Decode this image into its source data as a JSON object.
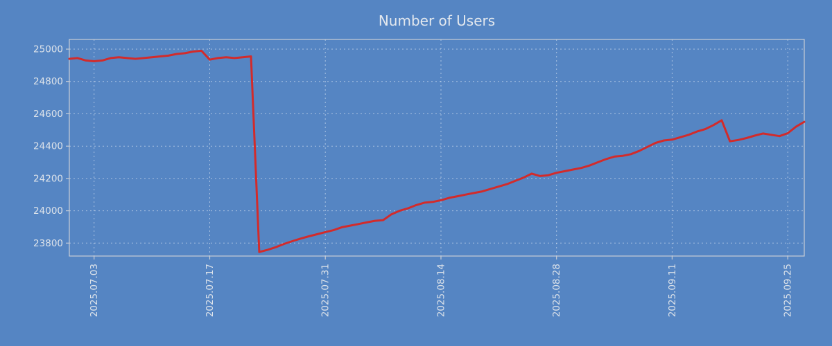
{
  "colors": {
    "background": "#5585c3",
    "title_text": "#e3e8ee",
    "tick_text": "#dde3ea",
    "grid": "rgba(255,255,255,0.5)",
    "plot_border": "#c9ced6",
    "line": "#d22b2b"
  },
  "chart_data": {
    "type": "line",
    "title": "Number of Users",
    "xlabel": "",
    "ylabel": "",
    "grid": "dashed",
    "legend": false,
    "x_tick_rotation": 90,
    "y_ticks": [
      23800,
      24000,
      24200,
      24400,
      24600,
      24800,
      25000
    ],
    "ylim": [
      23720,
      25060
    ],
    "x_ticks": [
      {
        "index": 3,
        "label": "2025.07.03"
      },
      {
        "index": 17,
        "label": "2025.07.17"
      },
      {
        "index": 31,
        "label": "2025.07.31"
      },
      {
        "index": 45,
        "label": "2025.08.14"
      },
      {
        "index": 59,
        "label": "2025.08.28"
      },
      {
        "index": 73,
        "label": "2025.09.11"
      },
      {
        "index": 87,
        "label": "2025.09.25"
      }
    ],
    "series": [
      {
        "name": "Number of Users",
        "color": "#d22b2b",
        "values": [
          24940,
          24945,
          24930,
          24925,
          24930,
          24945,
          24950,
          24945,
          24940,
          24945,
          24950,
          24955,
          24960,
          24970,
          24975,
          24985,
          24990,
          24935,
          24945,
          24950,
          24945,
          24950,
          24955,
          23745,
          23758,
          23775,
          23795,
          23812,
          23828,
          23842,
          23855,
          23868,
          23880,
          23898,
          23908,
          23918,
          23928,
          23938,
          23942,
          23978,
          24000,
          24015,
          24035,
          24050,
          24055,
          24065,
          24080,
          24090,
          24100,
          24110,
          24120,
          24135,
          24150,
          24165,
          24185,
          24205,
          24230,
          24215,
          24220,
          24235,
          24245,
          24255,
          24265,
          24280,
          24300,
          24320,
          24335,
          24340,
          24350,
          24370,
          24395,
          24420,
          24435,
          24440,
          24455,
          24470,
          24490,
          24505,
          24530,
          24560,
          24430,
          24438,
          24450,
          24465,
          24478,
          24470,
          24462,
          24480,
          24520,
          24550
        ]
      }
    ]
  }
}
